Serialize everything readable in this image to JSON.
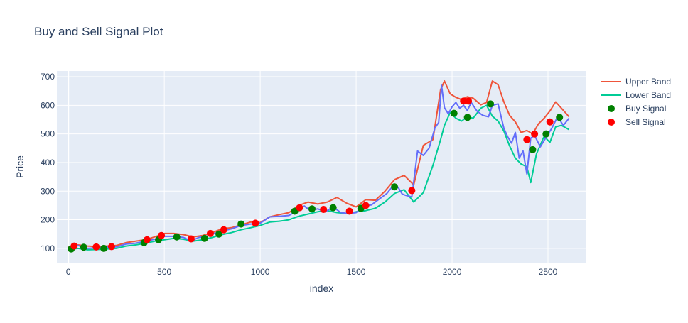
{
  "chart_data": {
    "type": "line",
    "title": "Buy and Sell Signal Plot",
    "xlabel": "index",
    "ylabel": "Price",
    "xlim": [
      -60,
      2700
    ],
    "ylim": [
      50,
      720
    ],
    "x_ticks": [
      0,
      500,
      1000,
      1500,
      2000,
      2500
    ],
    "y_ticks": [
      100,
      200,
      300,
      400,
      500,
      600,
      700
    ],
    "grid": true,
    "legend_position": "top-right",
    "colors": {
      "background": "#e5ecf6",
      "grid": "#ffffff",
      "upper_band": "#ef553b",
      "lower_band": "#00cc96",
      "price": "#636efa",
      "buy": "#008000",
      "sell": "#ff0000",
      "text": "#2a3f5f"
    },
    "series": [
      {
        "name": "Upper Band",
        "x": [
          0,
          50,
          100,
          150,
          200,
          250,
          300,
          350,
          400,
          450,
          500,
          550,
          600,
          650,
          700,
          750,
          800,
          850,
          900,
          950,
          1000,
          1050,
          1100,
          1150,
          1200,
          1250,
          1300,
          1350,
          1400,
          1450,
          1500,
          1550,
          1600,
          1650,
          1700,
          1750,
          1800,
          1850,
          1900,
          1940,
          1960,
          1990,
          2020,
          2050,
          2080,
          2110,
          2150,
          2180,
          2210,
          2240,
          2270,
          2300,
          2330,
          2360,
          2390,
          2420,
          2450,
          2480,
          2510,
          2540,
          2570,
          2610
        ],
        "y": [
          106,
          112,
          108,
          106,
          108,
          110,
          120,
          125,
          130,
          140,
          152,
          152,
          148,
          140,
          145,
          155,
          168,
          172,
          182,
          192,
          190,
          210,
          218,
          225,
          250,
          262,
          255,
          262,
          278,
          258,
          245,
          270,
          268,
          300,
          340,
          355,
          322,
          460,
          480,
          655,
          685,
          640,
          628,
          620,
          630,
          625,
          602,
          610,
          685,
          672,
          612,
          565,
          542,
          505,
          512,
          500,
          535,
          555,
          580,
          612,
          590,
          560
        ]
      },
      {
        "name": "Lower Band",
        "x": [
          0,
          50,
          100,
          150,
          200,
          250,
          300,
          350,
          400,
          450,
          500,
          550,
          600,
          650,
          700,
          750,
          800,
          850,
          900,
          950,
          1000,
          1050,
          1100,
          1150,
          1200,
          1250,
          1300,
          1350,
          1400,
          1450,
          1500,
          1550,
          1600,
          1650,
          1700,
          1750,
          1800,
          1850,
          1900,
          1940,
          1960,
          1990,
          2020,
          2050,
          2080,
          2110,
          2150,
          2180,
          2210,
          2240,
          2270,
          2300,
          2330,
          2360,
          2390,
          2410,
          2440,
          2480,
          2510,
          2540,
          2570,
          2610
        ],
        "y": [
          96,
          100,
          95,
          96,
          98,
          100,
          108,
          112,
          118,
          125,
          130,
          135,
          132,
          125,
          130,
          138,
          148,
          155,
          165,
          172,
          180,
          192,
          195,
          200,
          212,
          220,
          228,
          232,
          225,
          222,
          228,
          232,
          240,
          262,
          292,
          305,
          262,
          295,
          390,
          480,
          530,
          575,
          555,
          545,
          560,
          555,
          590,
          600,
          562,
          545,
          510,
          458,
          415,
          395,
          385,
          330,
          430,
          492,
          470,
          525,
          530,
          515
        ]
      },
      {
        "name": "Price",
        "x": [
          0,
          50,
          100,
          150,
          200,
          250,
          300,
          350,
          400,
          450,
          500,
          550,
          600,
          640,
          680,
          720,
          760,
          800,
          850,
          900,
          950,
          1000,
          1050,
          1100,
          1150,
          1200,
          1230,
          1260,
          1300,
          1340,
          1380,
          1420,
          1460,
          1500,
          1540,
          1580,
          1620,
          1660,
          1700,
          1720,
          1740,
          1760,
          1790,
          1820,
          1850,
          1880,
          1910,
          1930,
          1945,
          1960,
          1980,
          2000,
          2020,
          2040,
          2060,
          2080,
          2100,
          2130,
          2160,
          2190,
          2210,
          2240,
          2270,
          2290,
          2310,
          2330,
          2350,
          2370,
          2390,
          2410,
          2430,
          2460,
          2490,
          2520,
          2550,
          2580,
          2610
        ],
        "y": [
          102,
          110,
          100,
          102,
          104,
          105,
          115,
          118,
          125,
          132,
          142,
          142,
          138,
          126,
          138,
          142,
          152,
          160,
          168,
          180,
          185,
          188,
          210,
          212,
          215,
          235,
          248,
          232,
          238,
          228,
          245,
          225,
          222,
          225,
          248,
          252,
          272,
          292,
          325,
          312,
          290,
          285,
          280,
          440,
          425,
          450,
          520,
          540,
          670,
          592,
          570,
          595,
          610,
          590,
          600,
          582,
          610,
          580,
          565,
          560,
          600,
          605,
          520,
          490,
          468,
          505,
          415,
          440,
          360,
          485,
          495,
          455,
          488,
          520,
          560,
          530,
          555
        ]
      }
    ],
    "buy_signals": {
      "name": "Buy Signal",
      "x": [
        15,
        80,
        185,
        395,
        470,
        565,
        710,
        785,
        900,
        1180,
        1270,
        1380,
        1525,
        1700,
        2010,
        2080,
        2200,
        2420,
        2490,
        2560
      ],
      "y": [
        98,
        104,
        100,
        120,
        130,
        140,
        135,
        150,
        185,
        230,
        238,
        242,
        240,
        315,
        572,
        558,
        605,
        445,
        500,
        558
      ]
    },
    "sell_signals": {
      "name": "Sell Signal",
      "x": [
        30,
        145,
        225,
        410,
        485,
        640,
        740,
        810,
        975,
        1205,
        1330,
        1465,
        1550,
        1790,
        2060,
        2085,
        2390,
        2430,
        2510
      ],
      "y": [
        108,
        105,
        106,
        130,
        145,
        133,
        152,
        165,
        188,
        242,
        236,
        230,
        250,
        302,
        615,
        615,
        480,
        500,
        542
      ]
    }
  }
}
